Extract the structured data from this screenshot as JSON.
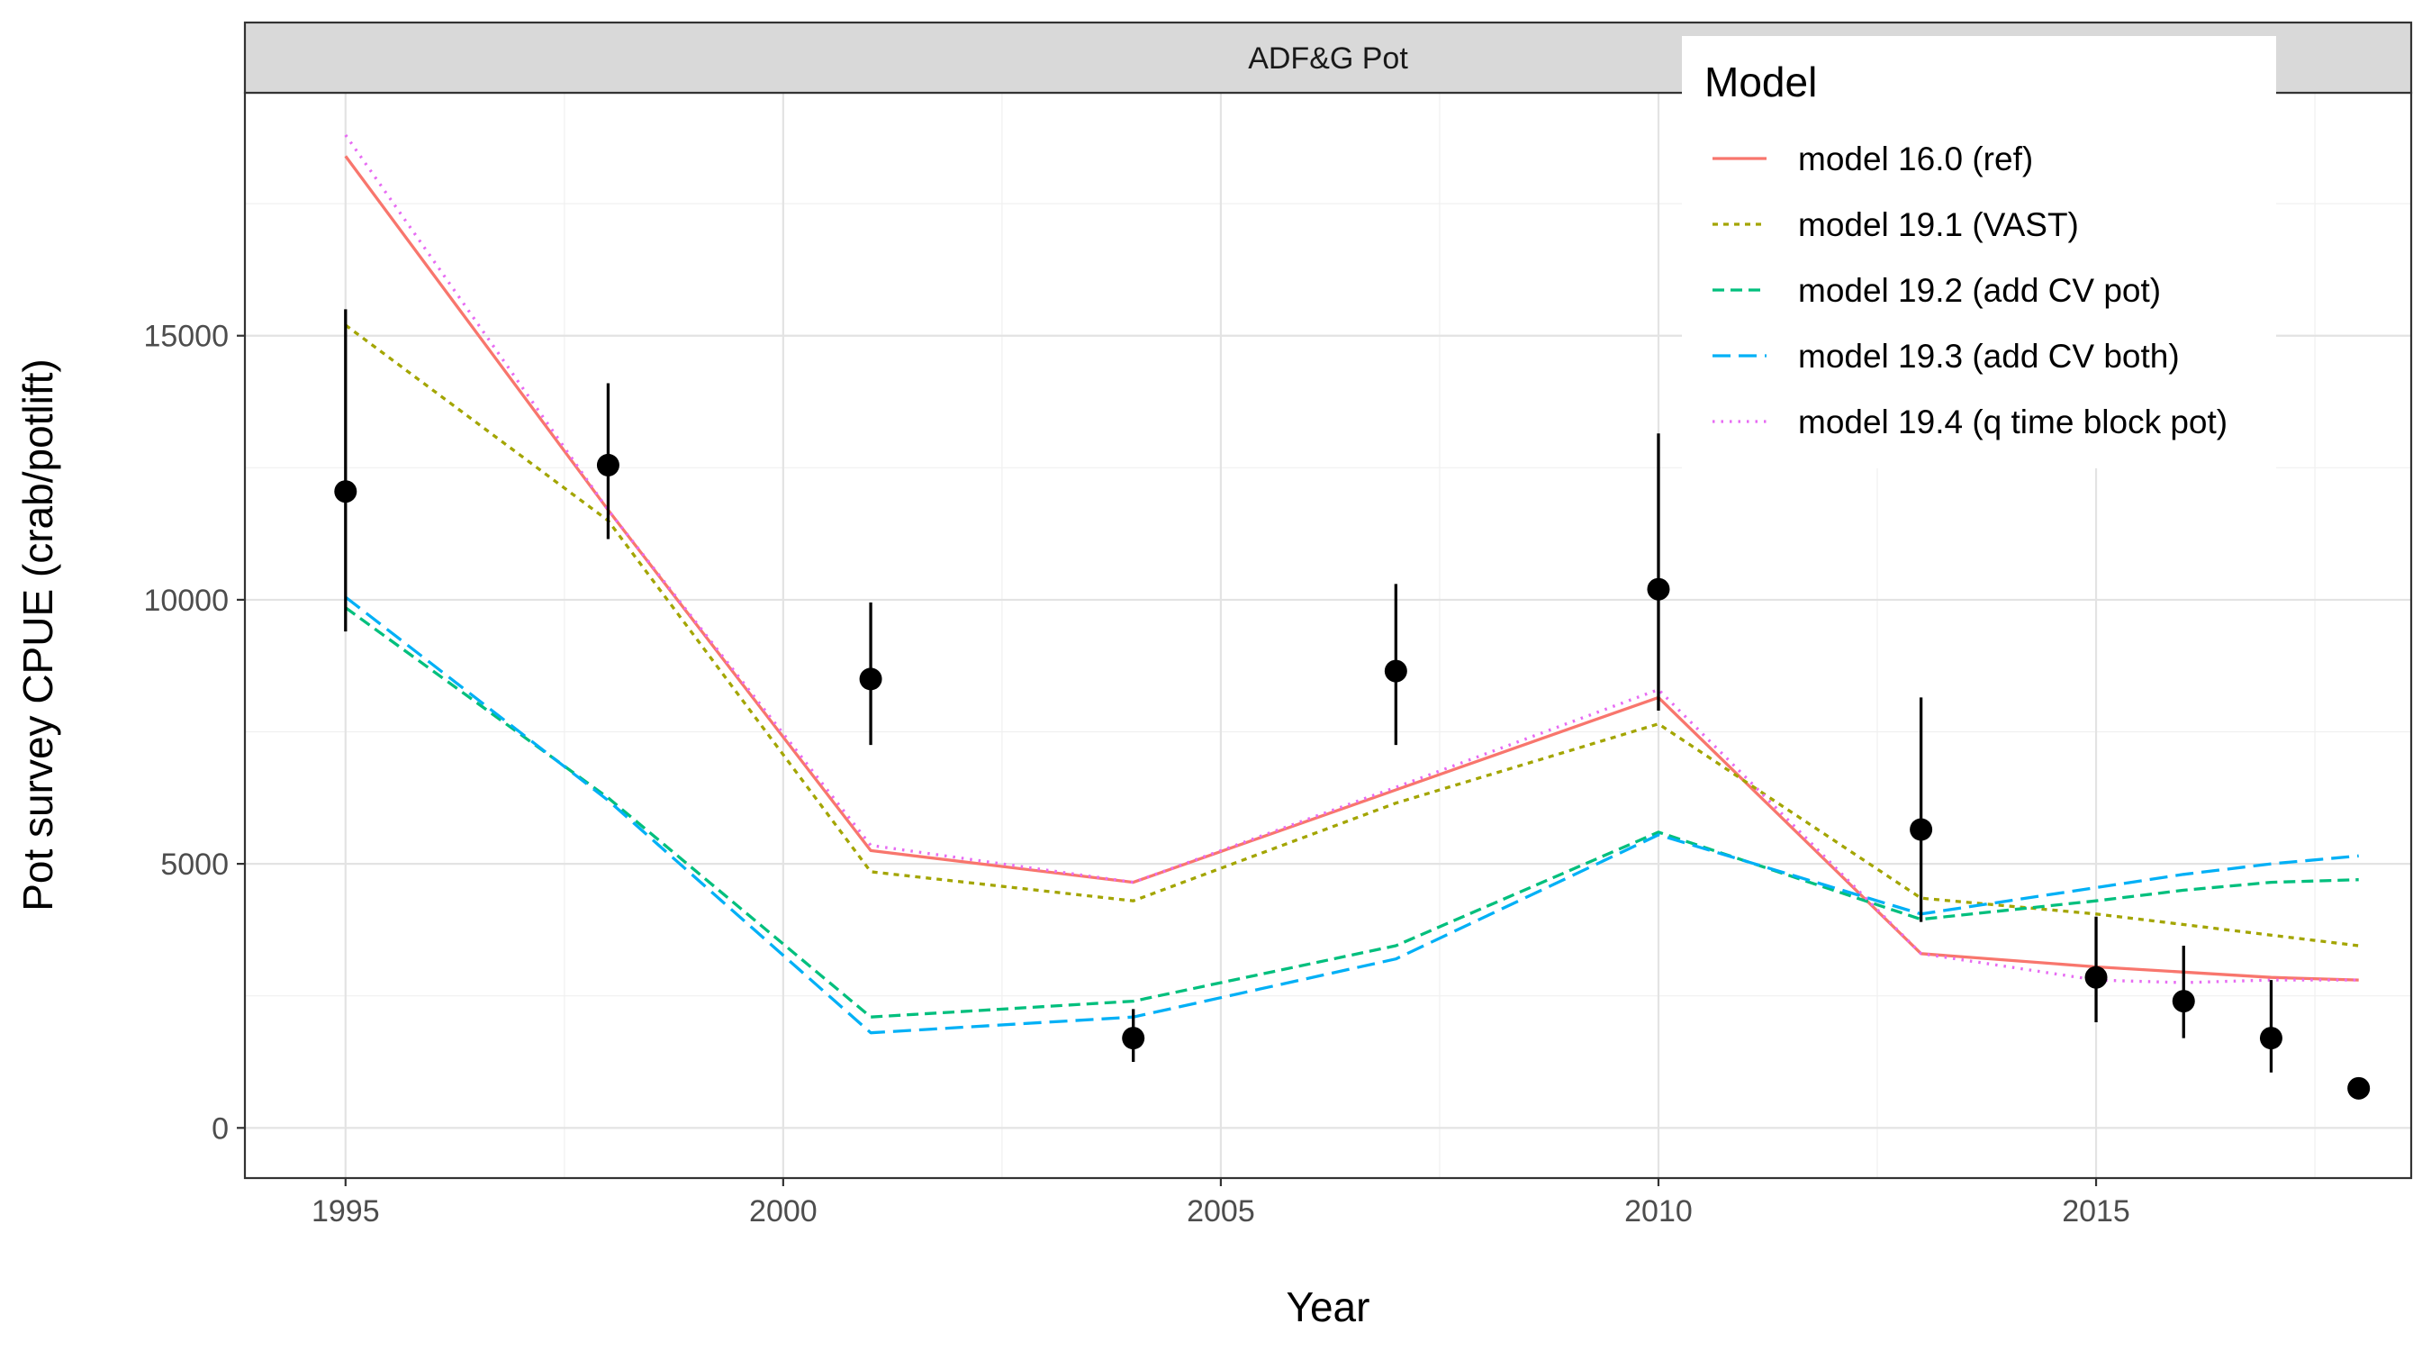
{
  "chart_data": {
    "type": "line",
    "facet_label": "ADF&G Pot",
    "title": "",
    "xlabel": "Year",
    "ylabel": "Pot survey CPUE (crab/potlift)",
    "xlim": [
      1993.85,
      2018.6
    ],
    "ylim": [
      -950,
      19600
    ],
    "x_ticks": [
      1995,
      2000,
      2005,
      2010,
      2015
    ],
    "x_tick_labels": [
      "1995",
      "2000",
      "2005",
      "2010",
      "2015"
    ],
    "y_ticks": [
      0,
      5000,
      10000,
      15000
    ],
    "y_tick_labels": [
      "0",
      "5000",
      "10000",
      "15000"
    ],
    "grid": true,
    "legend": {
      "title": "Model",
      "placement": "top-right"
    },
    "x": [
      1995,
      1998,
      2001,
      2004,
      2007,
      2010,
      2013,
      2015,
      2016,
      2017,
      2018
    ],
    "series": [
      {
        "name": "model 16.0 (ref)",
        "color": "#F8766D",
        "dash": "solid",
        "values": [
          18400,
          11700,
          5250,
          4650,
          6400,
          8150,
          3300,
          3050,
          2950,
          2850,
          2800
        ]
      },
      {
        "name": "model 19.1 (VAST)",
        "color": "#A3A500",
        "dash": "dotted-short",
        "values": [
          15200,
          11500,
          4850,
          4300,
          6150,
          7650,
          4350,
          4050,
          3850,
          3650,
          3450
        ]
      },
      {
        "name": "model 19.2 (add CV pot)",
        "color": "#00BF7D",
        "dash": "dashed",
        "values": [
          9850,
          6250,
          2100,
          2400,
          3450,
          5600,
          3950,
          4300,
          4500,
          4650,
          4700
        ]
      },
      {
        "name": "model 19.3 (add CV both)",
        "color": "#00B0F6",
        "dash": "longdash",
        "values": [
          10050,
          6200,
          1800,
          2100,
          3200,
          5550,
          4050,
          4550,
          4800,
          5000,
          5150
        ]
      },
      {
        "name": "model 19.4 (q time block pot)",
        "color": "#E76BF3",
        "dash": "dotted",
        "values": [
          18800,
          11700,
          5350,
          4650,
          6450,
          8300,
          3300,
          2800,
          2750,
          2800,
          2800
        ]
      }
    ],
    "observed": {
      "color": "#000000",
      "points": [
        {
          "x": 1995,
          "y": 12050,
          "lo": 9400,
          "hi": 15500
        },
        {
          "x": 1998,
          "y": 12550,
          "lo": 11150,
          "hi": 14100
        },
        {
          "x": 2001,
          "y": 8500,
          "lo": 7250,
          "hi": 9950
        },
        {
          "x": 2004,
          "y": 1700,
          "lo": 1250,
          "hi": 2250
        },
        {
          "x": 2007,
          "y": 8650,
          "lo": 7250,
          "hi": 10300
        },
        {
          "x": 2010,
          "y": 10200,
          "lo": 7900,
          "hi": 13150
        },
        {
          "x": 2013,
          "y": 5650,
          "lo": 3900,
          "hi": 8150
        },
        {
          "x": 2015,
          "y": 2850,
          "lo": 2000,
          "hi": 4000
        },
        {
          "x": 2016,
          "y": 2400,
          "lo": 1700,
          "hi": 3450
        },
        {
          "x": 2017,
          "y": 1700,
          "lo": 1050,
          "hi": 2800
        },
        {
          "x": 2018,
          "y": 750,
          "lo": 700,
          "hi": 800
        }
      ]
    }
  }
}
